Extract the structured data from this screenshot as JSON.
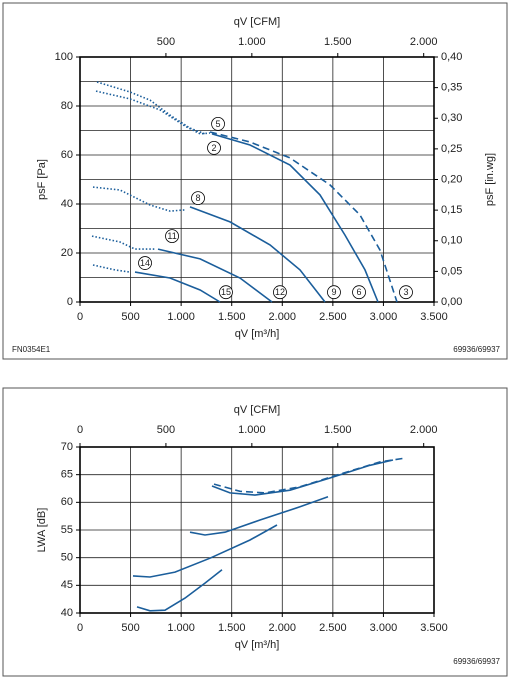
{
  "chart_data": [
    {
      "type": "line",
      "x2_label": "qV [CFM]",
      "x_label": "qV [m³/h]",
      "y_label": "psF [Pa]",
      "y2_label": "psF [in.wg]",
      "xlim": [
        0,
        3500
      ],
      "ylim": [
        0,
        100
      ],
      "x2lim": [
        0,
        2060
      ],
      "y2lim": [
        0,
        0.4
      ],
      "xticks": [
        0,
        500,
        {
          "value": 1000,
          "label": "1.000"
        },
        {
          "value": 1500,
          "label": "1.500"
        },
        {
          "value": 2000,
          "label": "2.000"
        },
        {
          "value": 2500,
          "label": "2.500"
        },
        {
          "value": 3000,
          "label": "3.000"
        },
        {
          "value": 3500,
          "label": "3.500"
        }
      ],
      "yticks": [
        0,
        20,
        40,
        60,
        80,
        100
      ],
      "ygrid": [
        10,
        20,
        30,
        40,
        50,
        60,
        70,
        80,
        90
      ],
      "x2ticks": [
        500,
        {
          "value": 1000,
          "label": "1.000"
        },
        {
          "value": 1500,
          "label": "1.500"
        },
        {
          "value": 2000,
          "label": "2.000"
        }
      ],
      "y2ticks": [
        {
          "value": 0,
          "label": "0,00"
        },
        {
          "value": 0.05,
          "label": "0,05"
        },
        {
          "value": 0.1,
          "label": "0,10"
        },
        {
          "value": 0.15,
          "label": "0,15"
        },
        {
          "value": 0.2,
          "label": "0,20"
        },
        {
          "value": 0.25,
          "label": "0,25"
        },
        {
          "value": 0.3,
          "label": "0,30"
        },
        {
          "value": 0.35,
          "label": "0,35"
        },
        {
          "value": 0.4,
          "label": "0,40"
        }
      ],
      "grid": true,
      "series": [
        {
          "style": "dotted",
          "color": "#1b5e9b",
          "x": [
            168,
            494,
            692,
            890,
            1088,
            1236
          ],
          "values": [
            89.8,
            85.7,
            82.4,
            76.3,
            71.0,
            68.6
          ]
        },
        {
          "style": "dotted",
          "color": "#1b5e9b",
          "x": [
            158,
            494,
            791,
            1038,
            1187,
            1285
          ],
          "values": [
            86.1,
            82.9,
            78.4,
            71.8,
            68.6,
            69.0
          ]
        },
        {
          "style": "dashed",
          "color": "#1b5e9b",
          "x": [
            1285,
            1681,
            2076,
            2472,
            2768,
            2966,
            3134
          ],
          "values": [
            69.4,
            65.3,
            58.8,
            47.8,
            35.5,
            21.2,
            0
          ]
        },
        {
          "style": "solid",
          "color": "#1b5e9b",
          "x": [
            1305,
            1681,
            2076,
            2373,
            2620,
            2818,
            2946
          ],
          "values": [
            68.6,
            64.1,
            55.9,
            43.7,
            27.3,
            13.1,
            0
          ]
        },
        {
          "style": "dotted",
          "color": "#1b5e9b",
          "x": [
            129,
            395,
            692,
            890,
            1038
          ],
          "values": [
            46.9,
            45.7,
            39.6,
            37.1,
            37.6
          ]
        },
        {
          "style": "solid",
          "color": "#1b5e9b",
          "x": [
            1088,
            1483,
            1879,
            2175,
            2422
          ],
          "values": [
            38.8,
            32.7,
            23.3,
            13.1,
            0
          ]
        },
        {
          "style": "dotted",
          "color": "#1b5e9b",
          "x": [
            119,
            395,
            544,
            742
          ],
          "values": [
            26.9,
            24.5,
            21.6,
            21.6
          ]
        },
        {
          "style": "solid",
          "color": "#1b5e9b",
          "x": [
            771,
            1187,
            1582,
            1898
          ],
          "values": [
            21.6,
            17.6,
            9.8,
            0
          ]
        },
        {
          "style": "dotted",
          "color": "#1b5e9b",
          "x": [
            129,
            346,
            494
          ],
          "values": [
            15.1,
            13.1,
            12.2
          ]
        },
        {
          "style": "solid",
          "color": "#1b5e9b",
          "x": [
            544,
            890,
            1187,
            1384
          ],
          "values": [
            12.2,
            9.8,
            4.9,
            0
          ]
        }
      ],
      "annotations": [
        {
          "text": "5",
          "x": 1365,
          "y": 72.7
        },
        {
          "text": "2",
          "x": 1325,
          "y": 62.9
        },
        {
          "text": "8",
          "x": 1167,
          "y": 42.4
        },
        {
          "text": "11",
          "x": 910,
          "y": 26.9
        },
        {
          "text": "14",
          "x": 643,
          "y": 15.9
        },
        {
          "text": "15",
          "x": 1443,
          "y": 4
        },
        {
          "text": "12",
          "x": 1977,
          "y": 4
        },
        {
          "text": "9",
          "x": 2511,
          "y": 4
        },
        {
          "text": "6",
          "x": 2759,
          "y": 4
        },
        {
          "text": "3",
          "x": 3223,
          "y": 4
        }
      ],
      "footer_left": "FN0354E1",
      "footer_right": "69936/69937"
    },
    {
      "type": "line",
      "x2_label": "qV [CFM]",
      "x_label": "qV [m³/h]",
      "y_label": "LWA [dB]",
      "xlim": [
        0,
        3500
      ],
      "ylim": [
        40,
        70
      ],
      "x2lim": [
        0,
        2060
      ],
      "xticks": [
        0,
        500,
        {
          "value": 1000,
          "label": "1.000"
        },
        {
          "value": 1500,
          "label": "1.500"
        },
        {
          "value": 2000,
          "label": "2.000"
        },
        {
          "value": 2500,
          "label": "2.500"
        },
        {
          "value": 3000,
          "label": "3.000"
        },
        {
          "value": 3500,
          "label": "3.500"
        }
      ],
      "yticks": [
        40,
        45,
        50,
        55,
        60,
        65,
        70
      ],
      "x2ticks": [
        0,
        500,
        {
          "value": 1000,
          "label": "1.000"
        },
        {
          "value": 1500,
          "label": "1.500"
        },
        {
          "value": 2000,
          "label": "2.000"
        }
      ],
      "grid": true,
      "series": [
        {
          "style": "solid",
          "color": "#1b5e9b",
          "x": [
            1305,
            1483,
            1730,
            2076,
            2472,
            2867,
            3095
          ],
          "values": [
            62.95,
            61.7,
            61.3,
            62.2,
            64.4,
            66.7,
            67.65
          ]
        },
        {
          "style": "dashed",
          "color": "#1b5e9b",
          "x": [
            1325,
            1582,
            1829,
            2175,
            2571,
            2966,
            3213
          ],
          "values": [
            63.3,
            62.0,
            61.7,
            62.8,
            65.1,
            67.3,
            68.0
          ]
        },
        {
          "style": "solid",
          "color": "#1b5e9b",
          "x": [
            1088,
            1236,
            1434,
            1780,
            2175,
            2452
          ],
          "values": [
            54.6,
            54.1,
            54.6,
            56.8,
            59.2,
            61.0
          ]
        },
        {
          "style": "solid",
          "color": "#1b5e9b",
          "x": [
            524,
            692,
            939,
            1285,
            1681,
            1948
          ],
          "values": [
            46.7,
            46.5,
            47.4,
            49.9,
            53.2,
            55.9
          ]
        },
        {
          "style": "solid",
          "color": "#1b5e9b",
          "x": [
            564,
            692,
            840,
            1038,
            1236,
            1404
          ],
          "values": [
            41.1,
            40.4,
            40.5,
            42.7,
            45.4,
            47.8
          ]
        }
      ],
      "footer_right": "69936/69937"
    }
  ]
}
